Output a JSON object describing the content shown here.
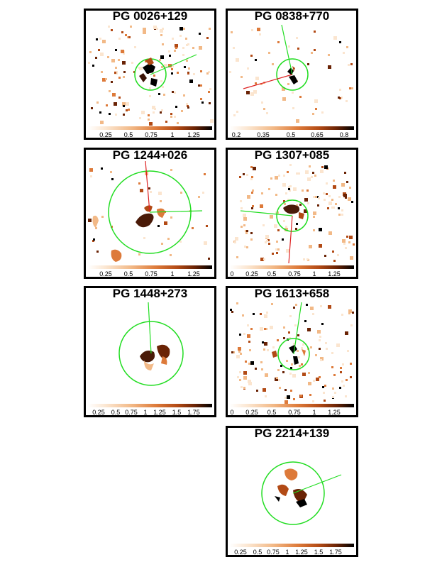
{
  "panels": [
    {
      "id": "p1",
      "title": "PG 0026+129",
      "ticks": [
        "0.25",
        "0.5",
        "0.75",
        "1",
        "1.25"
      ],
      "noise": "medium"
    },
    {
      "id": "p2",
      "title": "PG 0838+770",
      "ticks": [
        "0.2",
        "0.35",
        "0.5",
        "0.65",
        "0.8"
      ],
      "noise": "sparse"
    },
    {
      "id": "p3",
      "title": "PG 1244+026",
      "ticks": [
        "0.25",
        "0.5",
        "0.75",
        "1",
        "1.25"
      ],
      "noise": "low"
    },
    {
      "id": "p4",
      "title": "PG 1307+085",
      "ticks": [
        "0",
        "0.25",
        "0.5",
        "0.75",
        "1",
        "1.25"
      ],
      "noise": "medium"
    },
    {
      "id": "p5",
      "title": "PG 1448+273",
      "ticks": [
        "0.25",
        "0.5",
        "0.75",
        "1",
        "1.25",
        "1.5",
        "1.75"
      ],
      "noise": "none"
    },
    {
      "id": "p6",
      "title": "PG 1613+658",
      "ticks": [
        "0",
        "0.25",
        "0.5",
        "0.75",
        "1",
        "1.25"
      ],
      "noise": "medium"
    },
    {
      "id": "p7",
      "title": "PG 2214+139",
      "ticks": [
        "0.25",
        "0.5",
        "0.75",
        "1",
        "1.25",
        "1.5",
        "1.75"
      ],
      "noise": "none"
    }
  ],
  "colors": {
    "circle": "#22dd22",
    "green_line": "#22dd22",
    "red_line": "#dd2222",
    "frame": "#000000"
  }
}
